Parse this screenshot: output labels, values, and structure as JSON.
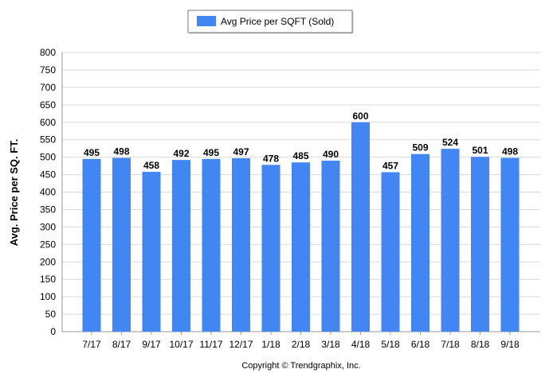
{
  "chart_data": {
    "type": "bar",
    "title": "",
    "xlabel": "",
    "ylabel": "Avg. Price per SQ. FT.",
    "ylim": [
      0,
      800
    ],
    "y_ticks": [
      "0",
      "50",
      "100",
      "150",
      "200",
      "250",
      "300",
      "350",
      "400",
      "450",
      "500",
      "550",
      "600",
      "650",
      "700",
      "750",
      "800"
    ],
    "grid": true,
    "legend_placement": "top-center",
    "categories": [
      "7/17",
      "8/17",
      "9/17",
      "10/17",
      "11/17",
      "12/17",
      "1/18",
      "2/18",
      "3/18",
      "4/18",
      "5/18",
      "6/18",
      "7/18",
      "8/18",
      "9/18"
    ],
    "series": [
      {
        "name": "Avg Price per SQFT (Sold)",
        "color": "#4286f4",
        "values": [
          495,
          498,
          458,
          492,
          495,
          497,
          478,
          485,
          490,
          600,
          457,
          509,
          524,
          501,
          498
        ]
      }
    ]
  },
  "footer": {
    "copyright": "Copyright © Trendgraphix, Inc."
  }
}
